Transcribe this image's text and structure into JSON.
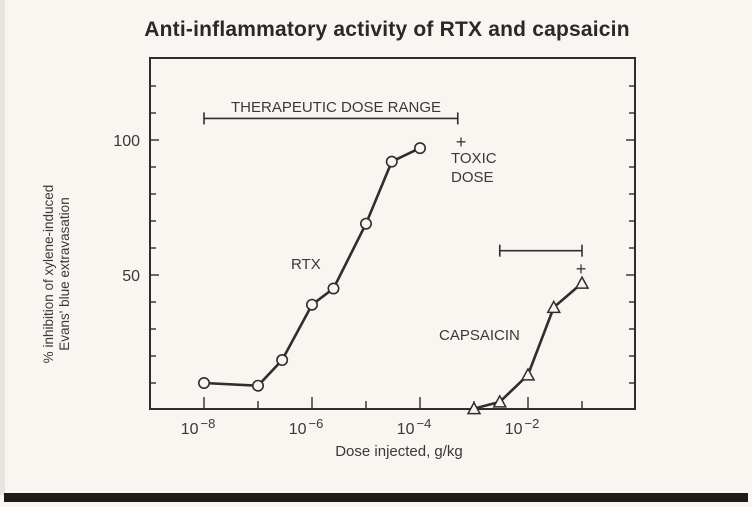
{
  "slide": {
    "title": "Anti-inflammatory activity of RTX and capsaicin",
    "colors": {
      "background": "#f9f6f2",
      "ink": "#2f2d2d",
      "bottom_strip": "#1c1a1a"
    }
  },
  "axes": {
    "ylabel_line1": "% inhibition of xylene-induced",
    "ylabel_line2": "Evans' blue extravasation",
    "xlabel": "Dose injected, g/kg",
    "y_ticks": [
      {
        "value": 100,
        "label": "100"
      },
      {
        "value": 50,
        "label": "50"
      }
    ],
    "x_ticks": [
      {
        "exp": -8,
        "base": "10",
        "sup": "−8"
      },
      {
        "exp": -6,
        "base": "10",
        "sup": "−6"
      },
      {
        "exp": -4,
        "base": "10",
        "sup": "−4"
      },
      {
        "exp": -2,
        "base": "10",
        "sup": "−2"
      }
    ]
  },
  "annotations": {
    "therapeutic_range_label": "THERAPEUTIC DOSE RANGE",
    "toxic_marker": "+",
    "toxic_line1": "TOXIC",
    "toxic_line2": "DOSE",
    "rtx_label": "RTX",
    "capsaicin_label": "CAPSAICIN",
    "capsaicin_toxic_marker": "+"
  },
  "chart_data": {
    "type": "line",
    "title": "Anti-inflammatory activity of RTX and capsaicin",
    "xlabel": "Dose injected, g/kg",
    "ylabel": "% inhibition of xylene-induced Evans' blue extravasation",
    "xscale": "log",
    "xlim": [
      3e-09,
      1.0
    ],
    "ylim": [
      0,
      125
    ],
    "x_tick_labels": [
      "10^-8",
      "10^-6",
      "10^-4",
      "10^-2"
    ],
    "y_tick_labels": [
      "50",
      "100"
    ],
    "grid": false,
    "series": [
      {
        "name": "RTX",
        "marker": "circle",
        "x": [
          1e-08,
          1e-07,
          2.8e-07,
          1e-06,
          2.5e-06,
          1e-05,
          3e-05,
          0.0001
        ],
        "y": [
          10,
          9,
          18.5,
          39,
          45,
          69,
          92,
          97
        ]
      },
      {
        "name": "CAPSAICIN",
        "marker": "triangle",
        "x": [
          0.001,
          0.003,
          0.01,
          0.03,
          0.1
        ],
        "y": [
          0.5,
          3,
          13,
          38,
          47
        ]
      }
    ],
    "annotations": [
      {
        "text": "THERAPEUTIC DOSE RANGE",
        "type": "range-bar",
        "series": "RTX",
        "x_range": [
          1e-08,
          0.0005
        ],
        "y": 108
      },
      {
        "text": "TOXIC DOSE",
        "type": "marker",
        "series": "RTX",
        "x": 0.0005,
        "y": 101
      },
      {
        "text": "",
        "type": "range-bar",
        "series": "CAPSAICIN",
        "x_range": [
          0.003,
          0.1
        ],
        "y": 59
      },
      {
        "text": "+",
        "type": "marker",
        "series": "CAPSAICIN",
        "x": 0.1,
        "y": 52
      }
    ]
  }
}
